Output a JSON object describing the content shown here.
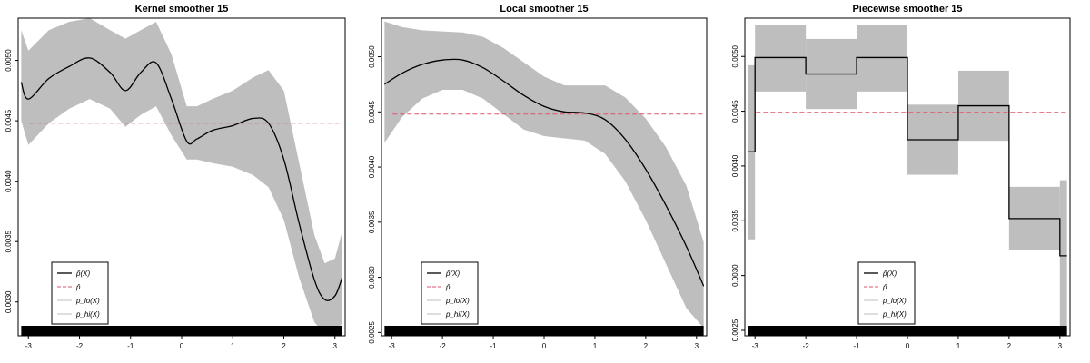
{
  "chart_data": [
    {
      "type": "line",
      "title": "Kernel smoother 15",
      "xlim": [
        -3.2,
        3.2
      ],
      "ylim": [
        0.00272,
        0.00535
      ],
      "xticks": [
        "-3",
        "-2",
        "-1",
        "0",
        "1",
        "2",
        "3"
      ],
      "xtick_values": [
        -3,
        -2,
        -1,
        0,
        1,
        2,
        3
      ],
      "yticks": [
        "0.0030",
        "0.0035",
        "0.0040",
        "0.0045",
        "0.0050"
      ],
      "ytick_values": [
        0.003,
        0.0035,
        0.004,
        0.0045,
        0.005
      ],
      "mean_line": 0.00448,
      "line_color": "#000000",
      "mean_color": "#df536b",
      "band_color": "#bebebe",
      "rug": true,
      "legend_position": "bottom-left",
      "legend": [
        "p̂(X)",
        "p̄",
        "p_lo(X)",
        "p_hi(X)"
      ],
      "x": [
        -3.14,
        -3.0,
        -2.6,
        -2.2,
        -1.8,
        -1.4,
        -1.1,
        -0.8,
        -0.5,
        -0.2,
        0.1,
        0.3,
        0.6,
        1.0,
        1.4,
        1.7,
        2.0,
        2.3,
        2.6,
        2.8,
        3.0,
        3.14
      ],
      "values": [
        0.00482,
        0.00468,
        0.00485,
        0.00495,
        0.00502,
        0.0049,
        0.00475,
        0.0049,
        0.00498,
        0.00468,
        0.00433,
        0.00435,
        0.00442,
        0.00446,
        0.00452,
        0.00448,
        0.00418,
        0.00365,
        0.00318,
        0.00302,
        0.00305,
        0.0032
      ],
      "lower": [
        0.0045,
        0.0043,
        0.00448,
        0.0046,
        0.00468,
        0.0046,
        0.00445,
        0.00455,
        0.00462,
        0.00438,
        0.00418,
        0.00418,
        0.00415,
        0.00412,
        0.00405,
        0.00395,
        0.00368,
        0.0032,
        0.00283,
        0.00274,
        0.00276,
        0.00282
      ],
      "upper": [
        0.00525,
        0.00508,
        0.00525,
        0.00532,
        0.00535,
        0.00525,
        0.00518,
        0.00525,
        0.00532,
        0.00505,
        0.00462,
        0.00462,
        0.00468,
        0.00475,
        0.00486,
        0.00492,
        0.00475,
        0.00415,
        0.00355,
        0.00332,
        0.00336,
        0.00358
      ]
    },
    {
      "type": "line",
      "title": "Local smoother 15",
      "xlim": [
        -3.2,
        3.2
      ],
      "ylim": [
        0.00247,
        0.00535
      ],
      "xticks": [
        "-3",
        "-2",
        "-1",
        "0",
        "1",
        "2",
        "3"
      ],
      "xtick_values": [
        -3,
        -2,
        -1,
        0,
        1,
        2,
        3
      ],
      "yticks": [
        "0.0025",
        "0.0030",
        "0.0035",
        "0.0040",
        "0.0045",
        "0.0050"
      ],
      "ytick_values": [
        0.0025,
        0.003,
        0.0035,
        0.004,
        0.0045,
        0.005
      ],
      "mean_line": 0.00448,
      "line_color": "#000000",
      "mean_color": "#df536b",
      "band_color": "#bebebe",
      "rug": true,
      "legend_position": "bottom-left",
      "legend": [
        "p̂(X)",
        "p̄",
        "p_lo(X)",
        "p_hi(X)"
      ],
      "x": [
        -3.14,
        -2.8,
        -2.4,
        -2.0,
        -1.6,
        -1.2,
        -0.8,
        -0.4,
        0.0,
        0.4,
        0.8,
        1.2,
        1.6,
        2.0,
        2.4,
        2.8,
        3.14
      ],
      "values": [
        0.00475,
        0.00485,
        0.00493,
        0.00497,
        0.00497,
        0.0049,
        0.00478,
        0.00465,
        0.00455,
        0.0045,
        0.00449,
        0.00443,
        0.00425,
        0.00398,
        0.00365,
        0.00328,
        0.00292
      ],
      "lower": [
        0.00422,
        0.00445,
        0.00462,
        0.0047,
        0.0047,
        0.00462,
        0.00448,
        0.00434,
        0.00428,
        0.00426,
        0.00424,
        0.00412,
        0.00387,
        0.00352,
        0.00312,
        0.00272,
        0.00254
      ],
      "upper": [
        0.00532,
        0.00527,
        0.00524,
        0.00523,
        0.00522,
        0.00518,
        0.00508,
        0.00495,
        0.00482,
        0.00474,
        0.00474,
        0.00474,
        0.00463,
        0.00444,
        0.00418,
        0.00383,
        0.00332
      ]
    },
    {
      "type": "step",
      "title": "Piecewise smoother 15",
      "xlim": [
        -3.2,
        3.2
      ],
      "ylim": [
        0.00245,
        0.00535
      ],
      "xticks": [
        "-3",
        "-2",
        "-1",
        "0",
        "1",
        "2",
        "3"
      ],
      "xtick_values": [
        -3,
        -2,
        -1,
        0,
        1,
        2,
        3
      ],
      "yticks": [
        "0.0025",
        "0.0030",
        "0.0035",
        "0.0040",
        "0.0045",
        "0.0050"
      ],
      "ytick_values": [
        0.0025,
        0.003,
        0.0035,
        0.004,
        0.0045,
        0.005
      ],
      "mean_line": 0.00449,
      "line_color": "#000000",
      "mean_color": "#df536b",
      "band_color": "#bebebe",
      "rug": true,
      "legend_position": "bottom-center",
      "legend": [
        "p̂(X)",
        "p̄",
        "p_lo(X)",
        "p_hi(X)"
      ],
      "segments": [
        {
          "x0": -3.14,
          "x1": -3.0,
          "value": 0.00413,
          "lower": 0.00333,
          "upper": 0.00492
        },
        {
          "x0": -3.0,
          "x1": -2.0,
          "value": 0.00499,
          "lower": 0.00468,
          "upper": 0.00529
        },
        {
          "x0": -2.0,
          "x1": -1.0,
          "value": 0.00484,
          "lower": 0.00452,
          "upper": 0.00516
        },
        {
          "x0": -1.0,
          "x1": 0.0,
          "value": 0.00499,
          "lower": 0.00468,
          "upper": 0.00529
        },
        {
          "x0": 0.0,
          "x1": 1.0,
          "value": 0.00424,
          "lower": 0.00392,
          "upper": 0.00456
        },
        {
          "x0": 1.0,
          "x1": 2.0,
          "value": 0.00455,
          "lower": 0.00423,
          "upper": 0.00487
        },
        {
          "x0": 2.0,
          "x1": 3.0,
          "value": 0.00352,
          "lower": 0.00323,
          "upper": 0.00381
        },
        {
          "x0": 3.0,
          "x1": 3.14,
          "value": 0.00318,
          "lower": 0.00247,
          "upper": 0.00387
        }
      ]
    }
  ]
}
